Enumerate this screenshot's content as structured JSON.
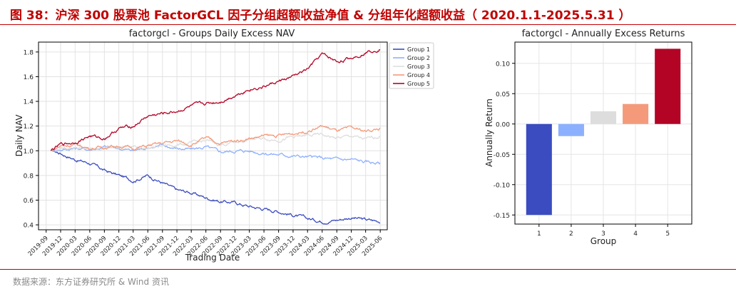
{
  "header": {
    "title": "图 38：沪深 300 股票池 FactorGCL 因子分组超额收益净值 & 分组年化超额收益（ 2020.1.1-2025.5.31 ）"
  },
  "source": "数据来源：东方证券研究所 & Wind 资讯",
  "colors": {
    "accent": "#c00000",
    "group1": "#3a4cc0",
    "group2": "#8db0fe",
    "group3": "#dddddd",
    "group4": "#f49a7b",
    "group5": "#b40426"
  },
  "chart_data": [
    {
      "type": "line",
      "title": "factorgcl - Groups Daily Excess NAV",
      "xlabel": "Trading Date",
      "ylabel": "Daily NAV",
      "x_ticks": [
        "2019-09",
        "2019-12",
        "2020-03",
        "2020-06",
        "2020-09",
        "2020-12",
        "2021-03",
        "2021-06",
        "2021-09",
        "2021-12",
        "2022-03",
        "2022-06",
        "2022-09",
        "2022-12",
        "2023-03",
        "2023-06",
        "2023-09",
        "2023-12",
        "2024-03",
        "2024-06",
        "2024-09",
        "2024-12",
        "2025-03",
        "2025-06"
      ],
      "y_ticks": [
        "0.4",
        "0.6",
        "0.8",
        "1.0",
        "1.2",
        "1.4",
        "1.6",
        "1.8"
      ],
      "ylim": [
        0.36,
        1.88
      ],
      "xlim": [
        "2019-07-15",
        "2025-07-15"
      ],
      "grid": true,
      "legend_position": "top-right",
      "x": [
        "2019-10-01",
        "2019-12-01",
        "2020-03-01",
        "2020-06-01",
        "2020-09-01",
        "2020-12-01",
        "2021-03-01",
        "2021-06-01",
        "2021-09-01",
        "2021-12-01",
        "2022-03-01",
        "2022-06-01",
        "2022-09-01",
        "2022-12-01",
        "2023-03-01",
        "2023-06-01",
        "2023-09-01",
        "2023-12-01",
        "2024-03-01",
        "2024-06-01",
        "2024-09-01",
        "2024-12-01",
        "2025-03-01",
        "2025-05-31"
      ],
      "series": [
        {
          "name": "Group 1",
          "values": [
            1.0,
            0.98,
            0.93,
            0.9,
            0.84,
            0.8,
            0.76,
            0.8,
            0.74,
            0.68,
            0.66,
            0.62,
            0.59,
            0.58,
            0.55,
            0.53,
            0.51,
            0.48,
            0.45,
            0.43,
            0.44,
            0.46,
            0.44,
            0.43
          ]
        },
        {
          "name": "Group 2",
          "values": [
            1.0,
            1.01,
            1.02,
            1.01,
            1.03,
            1.02,
            1.0,
            1.03,
            1.04,
            1.02,
            1.01,
            1.03,
            0.99,
            1.0,
            1.0,
            0.98,
            0.97,
            0.96,
            0.95,
            0.94,
            0.93,
            0.93,
            0.91,
            0.9
          ]
        },
        {
          "name": "Group 3",
          "values": [
            1.0,
            1.02,
            1.03,
            1.01,
            1.02,
            1.04,
            1.03,
            1.02,
            1.04,
            1.05,
            1.06,
            1.08,
            1.05,
            1.07,
            1.09,
            1.1,
            1.09,
            1.11,
            1.12,
            1.13,
            1.1,
            1.12,
            1.09,
            1.12
          ]
        },
        {
          "name": "Group 4",
          "values": [
            1.0,
            1.04,
            1.05,
            1.02,
            1.03,
            1.04,
            1.02,
            1.04,
            1.06,
            1.08,
            1.05,
            1.1,
            1.06,
            1.08,
            1.1,
            1.12,
            1.12,
            1.14,
            1.16,
            1.2,
            1.16,
            1.18,
            1.16,
            1.18
          ]
        },
        {
          "name": "Group 5",
          "values": [
            1.0,
            1.05,
            1.07,
            1.12,
            1.1,
            1.18,
            1.2,
            1.28,
            1.3,
            1.32,
            1.36,
            1.38,
            1.4,
            1.45,
            1.5,
            1.52,
            1.56,
            1.6,
            1.66,
            1.78,
            1.72,
            1.75,
            1.8,
            1.83
          ]
        }
      ]
    },
    {
      "type": "bar",
      "title": "factorgcl - Annually Excess Returns",
      "xlabel": "Group",
      "ylabel": "Annually Return",
      "categories": [
        "1",
        "2",
        "3",
        "4",
        "5"
      ],
      "values": [
        -0.15,
        -0.02,
        0.021,
        0.033,
        0.124
      ],
      "y_ticks": [
        "-0.15",
        "-0.10",
        "-0.05",
        "0.00",
        "0.05",
        "0.10"
      ],
      "ylim": [
        -0.165,
        0.135
      ],
      "grid": true
    }
  ]
}
